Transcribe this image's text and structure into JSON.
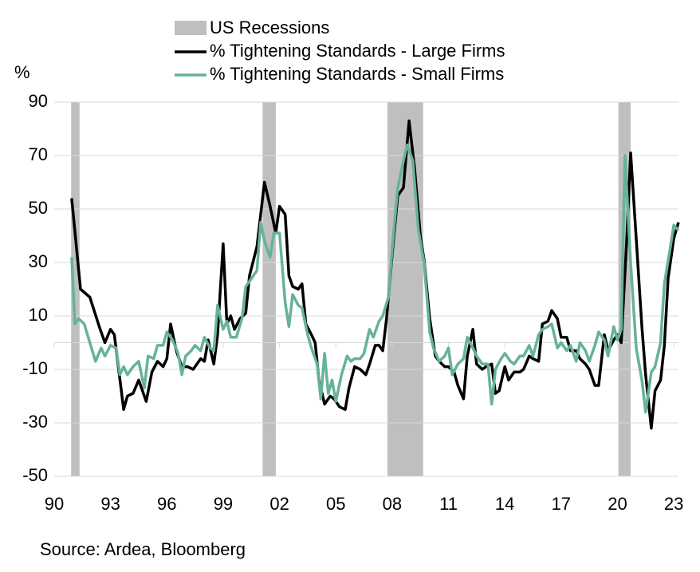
{
  "chart_data": {
    "type": "line",
    "y_label": "%",
    "source": "Source: Ardea, Bloomberg",
    "xlim": [
      1990,
      2023.25
    ],
    "xticks": [
      {
        "value": 1990,
        "label": "90"
      },
      {
        "value": 1993,
        "label": "93"
      },
      {
        "value": 1996,
        "label": "96"
      },
      {
        "value": 1999,
        "label": "99"
      },
      {
        "value": 2002,
        "label": "02"
      },
      {
        "value": 2005,
        "label": "05"
      },
      {
        "value": 2008,
        "label": "08"
      },
      {
        "value": 2011,
        "label": "11"
      },
      {
        "value": 2014,
        "label": "14"
      },
      {
        "value": 2017,
        "label": "17"
      },
      {
        "value": 2020,
        "label": "20"
      },
      {
        "value": 2023,
        "label": "23"
      }
    ],
    "ylim": [
      -50,
      90
    ],
    "yticks": [
      -50,
      -30,
      -10,
      10,
      30,
      50,
      70,
      90
    ],
    "grid": true,
    "recessions": {
      "name": "US Recessions",
      "color": "#bfbfbf",
      "periods": [
        [
          1990.9,
          1991.35
        ],
        [
          2001.1,
          2001.8
        ],
        [
          2007.75,
          2009.65
        ],
        [
          2020.05,
          2020.7
        ]
      ]
    },
    "series": [
      {
        "name": "% Tightening Standards - Large Firms",
        "color": "#000000",
        "x": [
          1990.93,
          1991.4,
          1991.9,
          1992.4,
          1992.7,
          1993.0,
          1993.2,
          1993.7,
          1993.9,
          1994.2,
          1994.5,
          1994.9,
          1995.2,
          1995.5,
          1995.8,
          1996.0,
          1996.2,
          1996.5,
          1996.8,
          1997.1,
          1997.4,
          1997.8,
          1998.0,
          1998.2,
          1998.5,
          1998.7,
          1999.0,
          1999.2,
          1999.4,
          1999.6,
          1999.9,
          2000.2,
          2000.4,
          2000.8,
          2001.2,
          2001.5,
          2001.8,
          2002.0,
          2002.3,
          2002.5,
          2002.7,
          2003.0,
          2003.2,
          2003.4,
          2003.7,
          2003.9,
          2004.1,
          2004.4,
          2004.7,
          2004.9,
          2005.2,
          2005.5,
          2005.7,
          2006.0,
          2006.3,
          2006.6,
          2006.8,
          2007.1,
          2007.3,
          2007.5,
          2007.7,
          2008.0,
          2008.3,
          2008.6,
          2008.9,
          2009.2,
          2009.5,
          2009.7,
          2010.0,
          2010.3,
          2010.5,
          2010.8,
          2011.0,
          2011.3,
          2011.5,
          2011.8,
          2012.0,
          2012.3,
          2012.5,
          2012.8,
          2013.0,
          2013.3,
          2013.5,
          2013.7,
          2014.0,
          2014.2,
          2014.5,
          2014.8,
          2015.0,
          2015.3,
          2015.5,
          2015.8,
          2016.0,
          2016.3,
          2016.5,
          2016.8,
          2017.0,
          2017.3,
          2017.5,
          2017.8,
          2018.0,
          2018.3,
          2018.5,
          2018.8,
          2019.0,
          2019.3,
          2019.5,
          2019.8,
          2020.0,
          2020.2,
          2020.5,
          2020.7,
          2021.0,
          2021.3,
          2021.5,
          2021.8,
          2022.0,
          2022.3,
          2022.5,
          2022.7,
          2023.0,
          2023.25
        ],
        "values": [
          54,
          20,
          17,
          6,
          0,
          5,
          3,
          -25,
          -20,
          -19,
          -14,
          -22,
          -11,
          -7,
          -9,
          -6,
          7,
          -3,
          -9,
          -9,
          -10,
          -6,
          -7,
          1,
          -8,
          3,
          37,
          7,
          10,
          5,
          9,
          11,
          25,
          36,
          60,
          51,
          41,
          51,
          48,
          25,
          21,
          20,
          22,
          7,
          3,
          0,
          -14,
          -23,
          -20,
          -21,
          -24,
          -25,
          -17,
          -9,
          -10,
          -12,
          -8,
          -1,
          -1,
          -3,
          9,
          33,
          55,
          58,
          83,
          65,
          40,
          31,
          9,
          -5,
          -7,
          -9,
          -9,
          -11,
          -16,
          -21,
          -5,
          5,
          -8,
          -10,
          -9,
          -8,
          -19,
          -18,
          -9,
          -14,
          -11,
          -11,
          -10,
          -5,
          -6,
          -7,
          7,
          8,
          12,
          9,
          2,
          2,
          -3,
          -3,
          -6,
          -8,
          -10,
          -16,
          -16,
          3,
          -3,
          1,
          3,
          0,
          39,
          71,
          39,
          6,
          -12,
          -32,
          -18,
          -14,
          -1,
          24,
          39,
          45
        ]
      },
      {
        "name": "% Tightening Standards - Small Firms",
        "color": "#66b397",
        "x": [
          1990.93,
          1991.1,
          1991.3,
          1991.6,
          1991.9,
          1992.2,
          1992.5,
          1992.7,
          1993.0,
          1993.3,
          1993.5,
          1993.7,
          1993.9,
          1994.2,
          1994.5,
          1994.8,
          1995.0,
          1995.3,
          1995.5,
          1995.8,
          1996.0,
          1996.3,
          1996.6,
          1996.8,
          1997.0,
          1997.3,
          1997.5,
          1997.8,
          1998.0,
          1998.3,
          1998.5,
          1998.7,
          1999.0,
          1999.2,
          1999.4,
          1999.7,
          2000.0,
          2000.2,
          2000.5,
          2000.8,
          2001.0,
          2001.2,
          2001.5,
          2001.7,
          2002.0,
          2002.3,
          2002.5,
          2002.7,
          2003.0,
          2003.2,
          2003.5,
          2003.7,
          2004.0,
          2004.2,
          2004.4,
          2004.6,
          2004.8,
          2005.0,
          2005.3,
          2005.6,
          2005.8,
          2006.0,
          2006.3,
          2006.5,
          2006.8,
          2007.0,
          2007.3,
          2007.5,
          2007.8,
          2008.0,
          2008.3,
          2008.6,
          2008.8,
          2009.1,
          2009.4,
          2009.7,
          2010.0,
          2010.2,
          2010.5,
          2010.8,
          2011.0,
          2011.2,
          2011.5,
          2011.8,
          2012.0,
          2012.3,
          2012.5,
          2012.8,
          2013.1,
          2013.3,
          2013.5,
          2013.8,
          2014.0,
          2014.3,
          2014.5,
          2014.8,
          2015.0,
          2015.3,
          2015.5,
          2015.8,
          2016.0,
          2016.3,
          2016.5,
          2016.8,
          2017.0,
          2017.3,
          2017.5,
          2017.8,
          2018.0,
          2018.3,
          2018.5,
          2018.8,
          2019.0,
          2019.3,
          2019.5,
          2019.8,
          2020.0,
          2020.2,
          2020.4,
          2020.7,
          2021.0,
          2021.3,
          2021.5,
          2021.8,
          2022.0,
          2022.3,
          2022.5,
          2022.8,
          2023.0,
          2023.25
        ],
        "values": [
          32,
          7,
          9,
          7,
          0,
          -7,
          -2,
          -5,
          -1,
          -2,
          -12,
          -9,
          -12,
          -9,
          -7,
          -17,
          -5,
          -6,
          -1,
          -1,
          4,
          1,
          -4,
          -12,
          -5,
          -3,
          -1,
          -3,
          2,
          -2,
          -3,
          14,
          5,
          8,
          2,
          2,
          9,
          21,
          24,
          27,
          45,
          38,
          32,
          41,
          41,
          15,
          6,
          18,
          14,
          13,
          3,
          -2,
          -8,
          -21,
          -4,
          -19,
          -14,
          -22,
          -12,
          -5,
          -7,
          -6,
          -6,
          -4,
          5,
          2,
          8,
          10,
          17,
          35,
          58,
          68,
          74,
          68,
          42,
          30,
          4,
          -2,
          -7,
          -5,
          -2,
          -12,
          -8,
          -6,
          2,
          -2,
          -5,
          -8,
          -8,
          -23,
          -10,
          -6,
          -4,
          -7,
          -8,
          -5,
          -5,
          -1,
          -5,
          3,
          5,
          6,
          7,
          -2,
          0,
          -3,
          -1,
          -7,
          0,
          -3,
          -7,
          -1,
          4,
          1,
          -5,
          6,
          1,
          5,
          70,
          30,
          -2,
          -14,
          -26,
          -11,
          -9,
          0,
          22,
          35,
          44,
          42
        ]
      }
    ]
  }
}
